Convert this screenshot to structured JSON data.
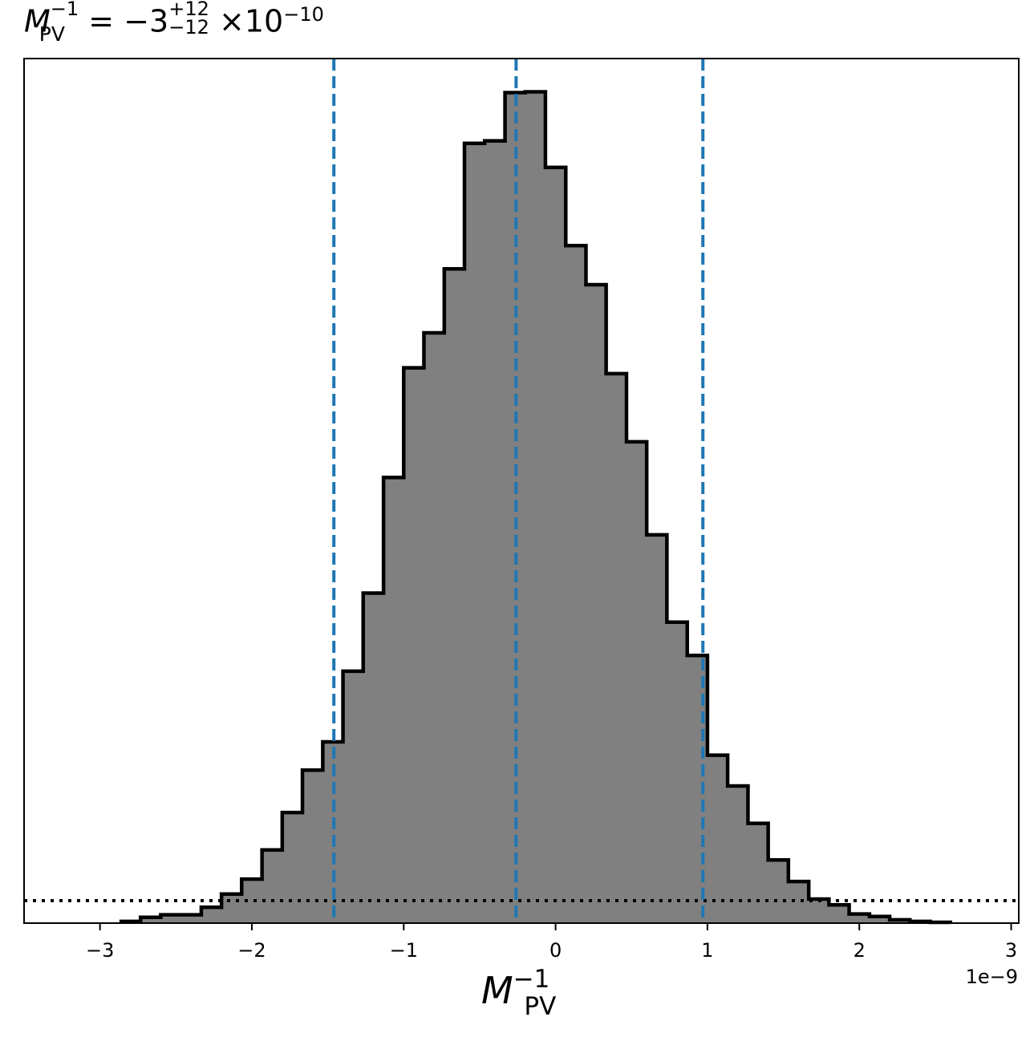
{
  "chart_data": {
    "type": "bar",
    "title": {
      "symbol": "M",
      "sup": "−1",
      "sub": "PV",
      "equals": "=",
      "value": "−3",
      "upper": "+12",
      "lower": "−12",
      "times": "×",
      "base": "10",
      "exponent": "−10"
    },
    "xlabel": {
      "symbol": "M",
      "sup": "−1",
      "sub": "PV"
    },
    "xlim": [
      -3.5,
      3.05
    ],
    "ylim": [
      0,
      1.04
    ],
    "x_ticks": [
      -3,
      -2,
      -1,
      0,
      1,
      2,
      3
    ],
    "x_tick_labels": [
      "−3",
      "−2",
      "−1",
      "0",
      "1",
      "2",
      "3"
    ],
    "x_offset_label": "1e−9",
    "bin_edges": [
      -2.86,
      -2.733,
      -2.6,
      -2.333,
      -2.2,
      -2.067,
      -1.933,
      -1.8,
      -1.667,
      -1.533,
      -1.4,
      -1.267,
      -1.133,
      -1.0,
      -0.867,
      -0.733,
      -0.6,
      -0.467,
      -0.333,
      -0.2,
      -0.067,
      0.067,
      0.2,
      0.333,
      0.467,
      0.6,
      0.733,
      0.867,
      1.0,
      1.133,
      1.267,
      1.4,
      1.533,
      1.667,
      1.8,
      1.933,
      2.067,
      2.2,
      2.333,
      2.467,
      2.6
    ],
    "values": [
      0.002,
      0.007,
      0.01,
      0.019,
      0.035,
      0.053,
      0.088,
      0.133,
      0.184,
      0.218,
      0.303,
      0.397,
      0.536,
      0.668,
      0.71,
      0.787,
      0.938,
      0.941,
      0.999,
      1.0,
      0.909,
      0.815,
      0.768,
      0.661,
      0.579,
      0.467,
      0.362,
      0.322,
      0.202,
      0.165,
      0.12,
      0.076,
      0.05,
      0.029,
      0.022,
      0.011,
      0.008,
      0.004,
      0.002,
      0.001
    ],
    "vlines": [
      -1.46,
      -0.26,
      0.97
    ],
    "hline": 0.027,
    "colors": {
      "fill": "#808080",
      "edge": "#000000",
      "vline": "#1f77b4",
      "hline": "#000000"
    }
  }
}
